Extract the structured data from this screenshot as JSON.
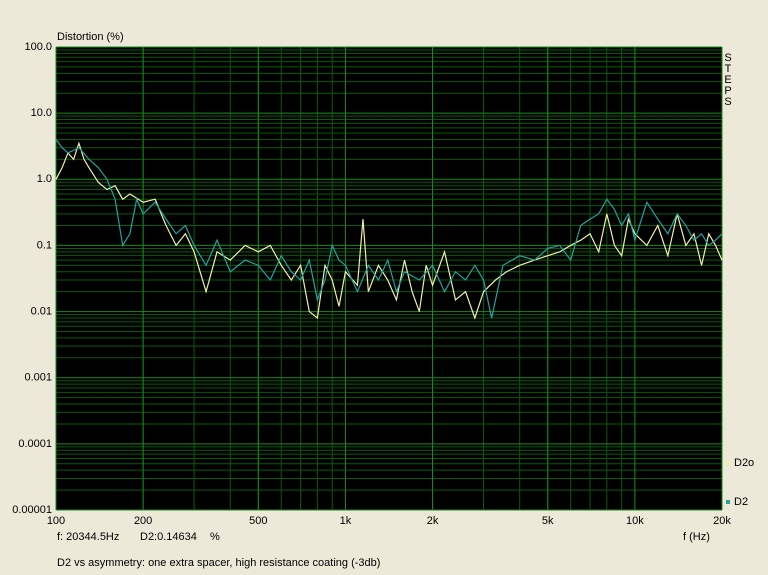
{
  "chart_data": {
    "type": "line",
    "ylabel": "Distortion (%)",
    "xlabel": "f (Hz)",
    "side_label": "STEPS",
    "caption": "D2 vs asymmetry: one extra spacer, high resistance coating (-3db)",
    "xscale": "log",
    "yscale": "log",
    "grid": true,
    "minor_grid": true,
    "xlim": [
      100,
      20000
    ],
    "ylim": [
      1e-05,
      100
    ],
    "xticks": [
      100,
      200,
      500,
      {
        "value": 1000,
        "label": "1k"
      },
      {
        "value": 2000,
        "label": "2k"
      },
      {
        "value": 5000,
        "label": "5k"
      },
      {
        "value": 10000,
        "label": "10k"
      },
      {
        "value": 20000,
        "label": "20k"
      }
    ],
    "yticks": [
      {
        "value": 100,
        "label": "100.0"
      },
      {
        "value": 10,
        "label": "10.0"
      },
      {
        "value": 1,
        "label": "1.0"
      },
      0.1,
      0.01,
      0.001,
      0.0001,
      1e-05
    ],
    "series": [
      {
        "name": "D2o",
        "color": "#f2f0a6",
        "x": [
          100,
          105,
          110,
          115,
          120,
          125,
          130,
          140,
          150,
          160,
          170,
          180,
          200,
          220,
          240,
          260,
          280,
          300,
          330,
          360,
          400,
          450,
          500,
          550,
          600,
          650,
          700,
          750,
          800,
          850,
          900,
          950,
          1000,
          1100,
          1150,
          1200,
          1300,
          1400,
          1500,
          1600,
          1700,
          1800,
          1900,
          2000,
          2200,
          2400,
          2600,
          2800,
          3000,
          3300,
          3600,
          4000,
          4500,
          5000,
          5500,
          6000,
          6500,
          7000,
          7500,
          8000,
          8500,
          9000,
          9500,
          10000,
          11000,
          12000,
          13000,
          14000,
          15000,
          16000,
          17000,
          18000,
          19000,
          20000
        ],
        "values": [
          1.0,
          1.5,
          2.5,
          2.0,
          3.5,
          2.0,
          1.5,
          0.9,
          0.7,
          0.8,
          0.5,
          0.6,
          0.45,
          0.5,
          0.2,
          0.1,
          0.15,
          0.08,
          0.02,
          0.08,
          0.06,
          0.1,
          0.08,
          0.1,
          0.05,
          0.03,
          0.05,
          0.01,
          0.008,
          0.05,
          0.03,
          0.012,
          0.04,
          0.025,
          0.25,
          0.02,
          0.05,
          0.03,
          0.015,
          0.06,
          0.02,
          0.01,
          0.05,
          0.025,
          0.08,
          0.015,
          0.02,
          0.008,
          0.02,
          0.03,
          0.04,
          0.05,
          0.06,
          0.07,
          0.08,
          0.1,
          0.12,
          0.15,
          0.08,
          0.3,
          0.1,
          0.07,
          0.25,
          0.15,
          0.1,
          0.2,
          0.07,
          0.3,
          0.1,
          0.15,
          0.05,
          0.15,
          0.1,
          0.06
        ]
      },
      {
        "name": "D2",
        "color": "#1fa3a3",
        "x": [
          100,
          105,
          110,
          120,
          130,
          140,
          150,
          160,
          170,
          180,
          190,
          200,
          220,
          240,
          260,
          280,
          300,
          330,
          360,
          400,
          450,
          500,
          550,
          600,
          650,
          700,
          750,
          800,
          850,
          900,
          950,
          1000,
          1100,
          1200,
          1300,
          1400,
          1500,
          1600,
          1800,
          2000,
          2200,
          2400,
          2600,
          2800,
          3000,
          3200,
          3500,
          4000,
          4500,
          5000,
          5500,
          6000,
          6500,
          7000,
          7500,
          8000,
          8500,
          9000,
          9500,
          10000,
          11000,
          12000,
          13000,
          14000,
          15000,
          16000,
          17000,
          18000,
          19000,
          20000
        ],
        "values": [
          4,
          3,
          2.5,
          3,
          2.0,
          1.5,
          1.0,
          0.5,
          0.1,
          0.15,
          0.5,
          0.3,
          0.45,
          0.25,
          0.15,
          0.2,
          0.1,
          0.05,
          0.12,
          0.04,
          0.06,
          0.05,
          0.03,
          0.07,
          0.04,
          0.03,
          0.06,
          0.015,
          0.03,
          0.1,
          0.06,
          0.05,
          0.02,
          0.05,
          0.03,
          0.06,
          0.02,
          0.04,
          0.03,
          0.05,
          0.02,
          0.04,
          0.03,
          0.05,
          0.03,
          0.008,
          0.05,
          0.07,
          0.06,
          0.09,
          0.1,
          0.06,
          0.2,
          0.25,
          0.3,
          0.5,
          0.35,
          0.2,
          0.3,
          0.12,
          0.45,
          0.25,
          0.15,
          0.3,
          0.2,
          0.12,
          0.15,
          0.1,
          0.12,
          0.15
        ]
      }
    ]
  },
  "status": {
    "frequency": "f: 20344.5Hz",
    "reading": "D2:0.14634",
    "unit": "%"
  }
}
